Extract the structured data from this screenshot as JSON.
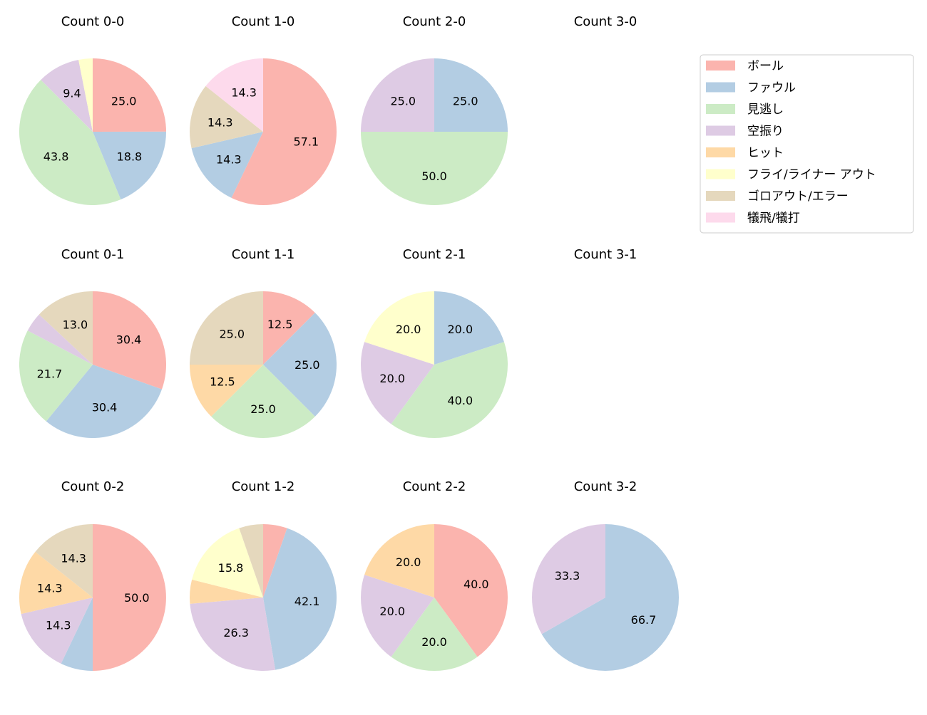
{
  "chart_data": {
    "type": "pie",
    "start": "top, clockwise",
    "categories": [
      "ボール",
      "ファウル",
      "見逃し",
      "空振り",
      "ヒット",
      "フライ/ライナー アウト",
      "ゴロアウト/エラー",
      "犠飛/犠打"
    ],
    "colors": [
      "#fbb4ae",
      "#b3cde3",
      "#ccebc5",
      "#decbe4",
      "#fed9a6",
      "#ffffcc",
      "#e5d8bd",
      "#fddaec"
    ],
    "legend": {
      "placement": "top-right"
    },
    "charts": [
      {
        "title": "Count 0-0",
        "values": [
          25.0,
          18.8,
          43.8,
          9.4,
          0,
          3.1,
          0,
          0
        ]
      },
      {
        "title": "Count 1-0",
        "values": [
          57.1,
          14.3,
          0,
          0,
          0,
          0,
          14.3,
          14.3
        ]
      },
      {
        "title": "Count 2-0",
        "values": [
          0,
          25.0,
          50.0,
          25.0,
          0,
          0,
          0,
          0
        ]
      },
      {
        "title": "Count 3-0",
        "values": []
      },
      {
        "title": "Count 0-1",
        "values": [
          30.4,
          30.4,
          21.7,
          4.3,
          0,
          0,
          13.0,
          0
        ]
      },
      {
        "title": "Count 1-1",
        "values": [
          12.5,
          25.0,
          25.0,
          0,
          12.5,
          0,
          25.0,
          0
        ]
      },
      {
        "title": "Count 2-1",
        "values": [
          0,
          20.0,
          40.0,
          20.0,
          0,
          20.0,
          0,
          0
        ]
      },
      {
        "title": "Count 3-1",
        "values": []
      },
      {
        "title": "Count 0-2",
        "values": [
          50.0,
          7.1,
          0,
          14.3,
          14.3,
          0,
          14.3,
          0
        ]
      },
      {
        "title": "Count 1-2",
        "values": [
          5.3,
          42.1,
          0,
          26.3,
          5.3,
          15.8,
          5.3,
          0
        ]
      },
      {
        "title": "Count 2-2",
        "values": [
          40.0,
          0,
          20.0,
          20.0,
          20.0,
          0,
          0,
          0
        ]
      },
      {
        "title": "Count 3-2",
        "values": [
          0,
          66.7,
          0,
          33.3,
          0,
          0,
          0,
          0
        ]
      }
    ]
  }
}
